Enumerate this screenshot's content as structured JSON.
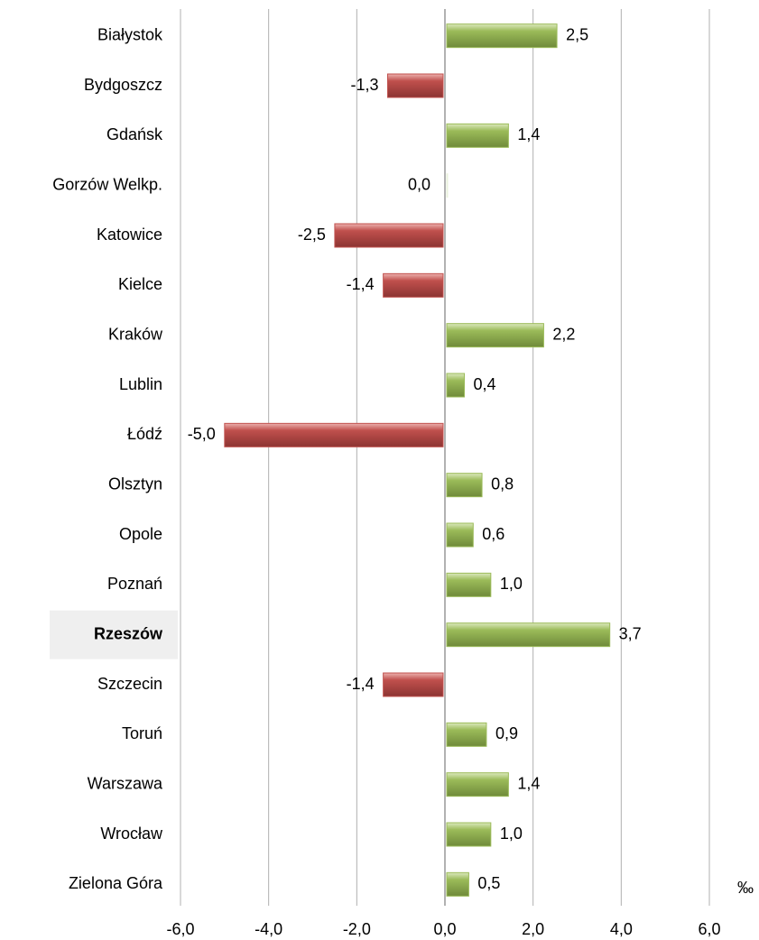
{
  "chart_data": {
    "type": "hbar",
    "categories": [
      "Białystok",
      "Bydgoszcz",
      "Gdańsk",
      "Gorzów Welkp.",
      "Katowice",
      "Kielce",
      "Kraków",
      "Lublin",
      "Łódź",
      "Olsztyn",
      "Opole",
      "Poznań",
      "Rzeszów",
      "Szczecin",
      "Toruń",
      "Warszawa",
      "Wrocław",
      "Zielona Góra"
    ],
    "values": [
      2.5,
      -1.3,
      1.4,
      0.0,
      -2.5,
      -1.4,
      2.2,
      0.4,
      -5.0,
      0.8,
      0.6,
      1.0,
      3.7,
      -1.4,
      0.9,
      1.4,
      1.0,
      0.5
    ],
    "value_labels": [
      "2,5",
      "-1,3",
      "1,4",
      "0,0",
      "-2,5",
      "-1,4",
      "2,2",
      "0,4",
      "-5,0",
      "0,8",
      "0,6",
      "1,0",
      "3,7",
      "-1,4",
      "0,9",
      "1,4",
      "1,0",
      "0,5"
    ],
    "positive_color": "#9bbb59",
    "negative_color": "#c0504d",
    "highlight": 12,
    "unit": "‰",
    "xlim": [
      -6,
      6
    ],
    "xticks": [
      {
        "value": -6,
        "label": "-6,0"
      },
      {
        "value": -4,
        "label": "-4,0"
      },
      {
        "value": -2,
        "label": "-2,0"
      },
      {
        "value": 0,
        "label": "0,0"
      },
      {
        "value": 2,
        "label": "2,0"
      },
      {
        "value": 4,
        "label": "4,0"
      },
      {
        "value": 6,
        "label": "6,0"
      }
    ],
    "grid": true
  }
}
